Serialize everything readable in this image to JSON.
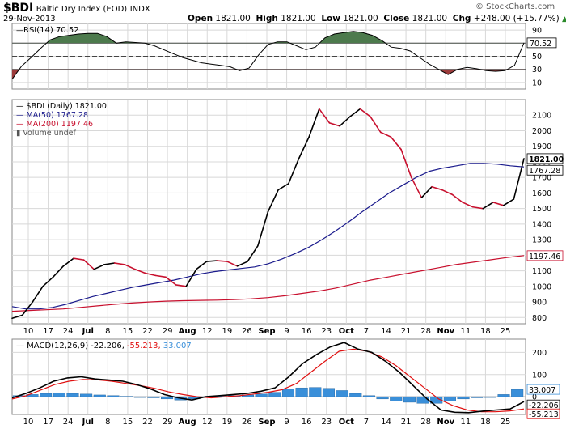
{
  "header": {
    "symbol": "$BDI",
    "name": "Baltic Dry Index (EOD)",
    "exchange": "INDX",
    "date": "29-Nov-2013",
    "open_label": "Open",
    "open": "1821.00",
    "high_label": "High",
    "high": "1821.00",
    "low_label": "Low",
    "low": "1821.00",
    "close_label": "Close",
    "close": "1821.00",
    "chg_label": "Chg",
    "chg": "+248.00 (+15.77%)",
    "watermark": "© StockCharts.com",
    "arrow_icon": "up-arrow-icon"
  },
  "colors": {
    "price": "#000000",
    "ma50": "#1a1a8c",
    "ma200": "#c8102e",
    "rsi_fill": "#4d7a4d",
    "rsi_fill_low": "#9c3b3b",
    "macd_hist": "#3a8fd9",
    "signal": "#e01010",
    "grid": "#d8d8d8"
  },
  "chart_data": [
    {
      "type": "line",
      "title": "RSI(14) 70.52",
      "legend": [
        {
          "label": "RSI(14) 70.52",
          "color": "#000000"
        }
      ],
      "y_ticks": [
        "90",
        "70",
        "50",
        "30",
        "10"
      ],
      "ylim": [
        0,
        100
      ],
      "reference_lines": [
        70,
        50,
        30
      ],
      "last_value_label": "70.52",
      "series": [
        {
          "name": "RSI(14)",
          "values": [
            15,
            35,
            48,
            62,
            75,
            80,
            82,
            84,
            85,
            85,
            80,
            70,
            72,
            71,
            70,
            66,
            60,
            54,
            48,
            44,
            40,
            38,
            36,
            34,
            28,
            32,
            52,
            68,
            72,
            72,
            66,
            60,
            64,
            78,
            84,
            86,
            88,
            86,
            82,
            74,
            64,
            62,
            58,
            48,
            38,
            30,
            22,
            30,
            33,
            31,
            28,
            27,
            28,
            36,
            70.52
          ]
        }
      ]
    },
    {
      "type": "line",
      "title": "$BDI (Daily) 1821.00",
      "legend": [
        {
          "label": "$BDI (Daily) 1821.00",
          "color": "#000000"
        },
        {
          "label": "MA(50) 1767.28",
          "color": "#1a1a8c"
        },
        {
          "label": "MA(200) 1197.46",
          "color": "#c8102e"
        },
        {
          "label": "Volume undef",
          "color": "#555555"
        }
      ],
      "x_tick_labels": [
        "10",
        "17",
        "24",
        "Jul",
        "8",
        "15",
        "22",
        "29",
        "Aug",
        "12",
        "19",
        "26",
        "Sep",
        "9",
        "16",
        "23",
        "Oct",
        "7",
        "14",
        "21",
        "28",
        "Nov",
        "11",
        "18",
        "25"
      ],
      "y_ticks": [
        "2100",
        "2000",
        "1900",
        "1800",
        "1700",
        "1600",
        "1500",
        "1400",
        "1300",
        "1200",
        "1100",
        "1000",
        "900",
        "800"
      ],
      "ylim": [
        760,
        2200
      ],
      "price_labels": [
        "1821.00",
        "1767.28",
        "1197.46"
      ],
      "series": [
        {
          "name": "$BDI (Daily)",
          "values": [
            795,
            815,
            900,
            1000,
            1060,
            1130,
            1180,
            1170,
            1110,
            1140,
            1150,
            1140,
            1110,
            1085,
            1070,
            1060,
            1010,
            1000,
            1110,
            1160,
            1165,
            1160,
            1130,
            1160,
            1260,
            1480,
            1620,
            1660,
            1820,
            1960,
            2140,
            2050,
            2030,
            2090,
            2140,
            2090,
            1990,
            1960,
            1880,
            1700,
            1570,
            1640,
            1620,
            1590,
            1540,
            1510,
            1500,
            1540,
            1520,
            1560,
            1821
          ]
        },
        {
          "name": "MA(50)",
          "values": [
            870,
            855,
            855,
            865,
            885,
            910,
            935,
            955,
            975,
            995,
            1010,
            1025,
            1040,
            1060,
            1080,
            1095,
            1105,
            1115,
            1125,
            1145,
            1175,
            1210,
            1250,
            1300,
            1355,
            1415,
            1480,
            1540,
            1600,
            1650,
            1700,
            1740,
            1760,
            1775,
            1790,
            1790,
            1785,
            1775,
            1767.28
          ]
        },
        {
          "name": "MA(200)",
          "values": [
            840,
            845,
            850,
            855,
            865,
            875,
            885,
            893,
            900,
            905,
            908,
            910,
            912,
            915,
            920,
            928,
            940,
            955,
            970,
            990,
            1015,
            1040,
            1060,
            1080,
            1100,
            1120,
            1140,
            1155,
            1170,
            1185,
            1197.46
          ]
        }
      ]
    },
    {
      "type": "line",
      "title": "MACD(12,26,9) -22.206, -55.213, 33.007",
      "legend": [
        {
          "label": "MACD(12,26,9)",
          "color": "#000000"
        },
        {
          "label": "-22.206",
          "color": "#000000"
        },
        {
          "label": "-55.213",
          "color": "#e01010"
        },
        {
          "label": "33.007",
          "color": "#3a8fd9"
        }
      ],
      "x_tick_labels": [
        "10",
        "17",
        "24",
        "Jul",
        "8",
        "15",
        "22",
        "29",
        "Aug",
        "12",
        "19",
        "26",
        "Sep",
        "9",
        "16",
        "23",
        "Oct",
        "7",
        "14",
        "21",
        "28",
        "Nov",
        "11",
        "18",
        "25"
      ],
      "y_ticks": [
        "200",
        "100",
        "0"
      ],
      "ylim": [
        -80,
        260
      ],
      "price_labels": [
        "33.007",
        "-22.206",
        "-55.213"
      ],
      "series": [
        {
          "name": "MACD",
          "values": [
            -5,
            15,
            40,
            70,
            85,
            90,
            80,
            75,
            70,
            55,
            35,
            10,
            -5,
            -15,
            0,
            5,
            10,
            15,
            25,
            40,
            90,
            150,
            190,
            225,
            245,
            215,
            200,
            160,
            110,
            50,
            -10,
            -60,
            -70,
            -72,
            -65,
            -60,
            -55,
            -22.206
          ]
        },
        {
          "name": "Signal",
          "values": [
            -10,
            5,
            30,
            55,
            70,
            78,
            76,
            70,
            60,
            50,
            38,
            22,
            10,
            0,
            -5,
            0,
            5,
            12,
            20,
            32,
            60,
            110,
            160,
            205,
            215,
            205,
            180,
            140,
            90,
            40,
            -10,
            -40,
            -60,
            -68,
            -68,
            -64,
            -55.213
          ]
        },
        {
          "name": "Histogram",
          "values": [
            5,
            10,
            15,
            18,
            15,
            12,
            8,
            5,
            2,
            0,
            -5,
            -10,
            -15,
            -10,
            0,
            2,
            5,
            8,
            12,
            20,
            35,
            40,
            42,
            38,
            28,
            15,
            5,
            -10,
            -20,
            -25,
            -30,
            -30,
            -20,
            -10,
            -5,
            0,
            10,
            33.007
          ]
        }
      ]
    }
  ]
}
